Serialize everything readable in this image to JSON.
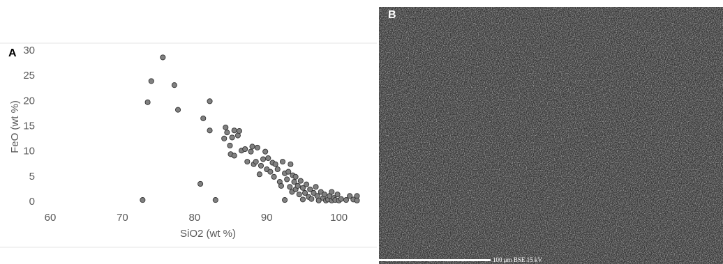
{
  "chart_data": {
    "type": "scatter",
    "x_label": "SiO2 (wt %)",
    "y_label": "FeO (wt %)",
    "color": "#808080",
    "grid": false,
    "xlim": [
      60,
      104
    ],
    "xticks": [
      60,
      70,
      80,
      90,
      100
    ],
    "ylim": [
      0,
      30
    ],
    "yticks": [
      0,
      5,
      10,
      15,
      20,
      25,
      30
    ],
    "x": [
      72.8,
      73.5,
      74,
      75.6,
      77.2,
      77.7,
      80.8,
      81.2,
      82.1,
      82.1,
      82.9,
      84.1,
      84.3,
      84.5,
      84.9,
      85,
      85.2,
      85.5,
      85.5,
      86,
      86.2,
      86.5,
      87,
      87.3,
      87.8,
      88,
      88.2,
      88.5,
      88.7,
      89,
      89.2,
      89.5,
      89.8,
      90,
      90.2,
      90.5,
      90.8,
      91,
      91.2,
      91.5,
      91.8,
      92,
      92.2,
      92.5,
      92.5,
      92.8,
      93,
      93.2,
      93.3,
      93.5,
      93.6,
      93.8,
      94,
      94,
      94.3,
      94.5,
      94.7,
      95,
      95,
      95.3,
      95.5,
      95.8,
      96,
      96.2,
      96.5,
      96.8,
      97,
      97.2,
      97.5,
      97.8,
      98,
      98.2,
      98.5,
      98.7,
      99,
      99,
      99.3,
      99.5,
      99.8,
      100,
      100.3,
      101,
      101.5,
      102,
      102.5,
      102.5
    ],
    "values": [
      0.4,
      19.8,
      24,
      28.7,
      23.2,
      18.3,
      3.6,
      16.6,
      20,
      14.2,
      0.4,
      12.6,
      14.8,
      13.8,
      11.2,
      9.5,
      12.8,
      14.2,
      9.2,
      13.2,
      14.1,
      10.2,
      10.5,
      8,
      10,
      11,
      7.5,
      8,
      10.8,
      5.5,
      7.2,
      8.5,
      10,
      6.5,
      8.7,
      6,
      7.8,
      5,
      7.5,
      6.5,
      4,
      3.2,
      8,
      5.7,
      0.4,
      4.5,
      6,
      3,
      7.5,
      2,
      5.3,
      4,
      2.5,
      5,
      3.2,
      1.5,
      4.2,
      2.8,
      0.5,
      1.8,
      3.5,
      1,
      2.5,
      0.6,
      1.8,
      3,
      1.2,
      0.3,
      2,
      0.8,
      1.5,
      0.3,
      0.5,
      1.2,
      2,
      0.3,
      0.8,
      0.4,
      1.5,
      0.3,
      0.6,
      0.4,
      1.2,
      0.5,
      1.2,
      0.3
    ]
  },
  "panels": {
    "a_label": "A",
    "b_label": "B",
    "scale_bar": "100 μm BSE 15 kV"
  }
}
